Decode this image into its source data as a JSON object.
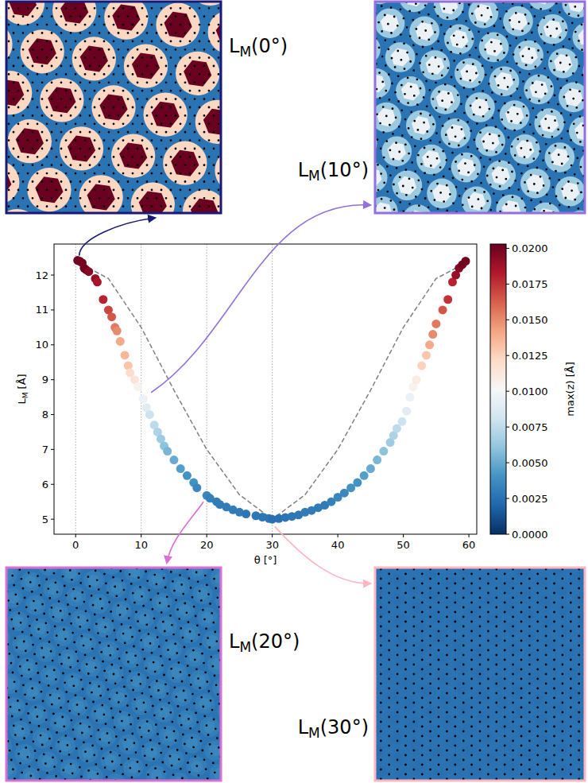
{
  "chart_data": {
    "type": "scatter",
    "xlabel": "θ [°]",
    "ylabel": {
      "text": "L",
      "sub": "M",
      "suffix": " [Å]"
    },
    "xlim": [
      -3.3,
      61.2
    ],
    "ylim": [
      4.57,
      12.89
    ],
    "xticks": [
      0,
      10,
      20,
      30,
      40,
      50,
      60
    ],
    "yticks": [
      5,
      6,
      7,
      8,
      9,
      10,
      11,
      12
    ],
    "vlines": [
      0,
      10,
      20,
      30
    ],
    "series": [
      {
        "type": "scatter",
        "marker": "circle",
        "x": [
          0.3,
          0.6,
          1.0,
          1.3,
          1.6,
          2.0,
          3.0,
          3.3,
          4.2,
          5.0,
          5.5,
          6.0,
          6.3,
          6.8,
          7.5,
          8.0,
          8.3,
          9.0,
          9.5,
          10.3,
          10.8,
          11.3,
          12.0,
          12.5,
          13.0,
          13.5,
          14.0,
          15.0,
          16.0,
          17.0,
          18.0,
          18.5,
          20.0,
          20.5,
          21.5,
          22.0,
          23.0,
          24.0,
          25.0,
          26.0,
          27.5,
          28.5,
          29.5,
          30.0,
          31,
          32,
          33,
          34,
          35,
          36,
          37,
          38,
          39,
          40,
          41,
          42,
          43,
          44,
          45,
          46,
          47,
          48,
          48.5,
          49,
          49.8,
          50.5,
          51,
          51.5,
          52,
          52.8,
          53.5,
          54,
          54.5,
          55,
          56,
          56.8,
          57.5,
          58,
          58.5,
          59,
          59.5
        ],
        "values": [
          12.42,
          12.4,
          12.35,
          12.2,
          12.15,
          12.1,
          11.9,
          11.8,
          11.3,
          11.0,
          10.8,
          10.5,
          10.4,
          10.1,
          9.7,
          9.4,
          9.2,
          9.0,
          8.8,
          8.45,
          8.2,
          8.0,
          7.7,
          7.5,
          7.3,
          7.1,
          6.95,
          6.7,
          6.45,
          6.25,
          6.05,
          5.9,
          5.68,
          5.6,
          5.5,
          5.42,
          5.35,
          5.27,
          5.2,
          5.15,
          5.1,
          5.06,
          5.02,
          5.0,
          5.02,
          5.05,
          5.08,
          5.12,
          5.2,
          5.25,
          5.33,
          5.4,
          5.5,
          5.63,
          5.75,
          5.9,
          6.05,
          6.25,
          6.45,
          6.7,
          6.95,
          7.2,
          7.4,
          7.6,
          7.8,
          8.1,
          8.5,
          8.8,
          9.0,
          9.4,
          9.7,
          10.0,
          10.3,
          10.6,
          11.0,
          11.3,
          11.8,
          12.0,
          12.2,
          12.3,
          12.4
        ],
        "z": [
          0.0202,
          0.02,
          0.02,
          0.02,
          0.02,
          0.0195,
          0.019,
          0.0185,
          0.018,
          0.017,
          0.0165,
          0.0155,
          0.015,
          0.014,
          0.0135,
          0.013,
          0.012,
          0.0115,
          0.0105,
          0.0095,
          0.009,
          0.008,
          0.0075,
          0.007,
          0.0065,
          0.006,
          0.0055,
          0.005,
          0.0045,
          0.004,
          0.004,
          0.0035,
          0.0035,
          0.0032,
          0.003,
          0.003,
          0.003,
          0.003,
          0.003,
          0.0028,
          0.0028,
          0.0028,
          0.0028,
          0.0025,
          0.0025,
          0.0027,
          0.0028,
          0.0028,
          0.003,
          0.003,
          0.003,
          0.003,
          0.0032,
          0.0035,
          0.0035,
          0.004,
          0.004,
          0.0045,
          0.005,
          0.0055,
          0.006,
          0.0065,
          0.007,
          0.0075,
          0.008,
          0.009,
          0.0095,
          0.0105,
          0.011,
          0.0125,
          0.013,
          0.014,
          0.015,
          0.0155,
          0.0165,
          0.0175,
          0.018,
          0.019,
          0.0195,
          0.02,
          0.02
        ]
      },
      {
        "type": "line",
        "line_style": "dashed",
        "color": "#808080",
        "x": [
          0,
          5,
          10,
          15,
          20,
          25,
          30,
          35,
          40,
          45,
          50,
          55,
          60
        ],
        "values": [
          12.4,
          11.9,
          10.5,
          8.7,
          7.0,
          5.7,
          5.0,
          5.7,
          7.0,
          8.7,
          10.5,
          11.9,
          12.4
        ]
      }
    ],
    "colorbar": {
      "label": "max(z) [Å]",
      "range": [
        0,
        0.0203
      ],
      "ticks": [
        {
          "value": 0,
          "label": "0.0000"
        },
        {
          "value": 0.0025,
          "label": "0.0025"
        },
        {
          "value": 0.005,
          "label": "0.0050"
        },
        {
          "value": 0.0075,
          "label": "0.0075"
        },
        {
          "value": 0.01,
          "label": "0.0100"
        },
        {
          "value": 0.0125,
          "label": "0.0125"
        },
        {
          "value": 0.015,
          "label": "0.0150"
        },
        {
          "value": 0.0175,
          "label": "0.0175"
        },
        {
          "value": 0.02,
          "label": "0.0200"
        }
      ]
    },
    "panels": [
      {
        "angle": 0,
        "color": "#1a1a75",
        "label": {
          "text": "L",
          "sub": "M",
          "suffix": "(0°)"
        }
      },
      {
        "angle": 10,
        "color": "#9370db",
        "label": {
          "text": "L",
          "sub": "M",
          "suffix": "(10°)"
        }
      },
      {
        "angle": 20,
        "color": "#da70d6",
        "label": {
          "text": "L",
          "sub": "M",
          "suffix": "(20°)"
        }
      },
      {
        "angle": 30,
        "color": "#ffb6c1",
        "label": {
          "text": "L",
          "sub": "M",
          "suffix": "(30°)"
        }
      }
    ]
  }
}
